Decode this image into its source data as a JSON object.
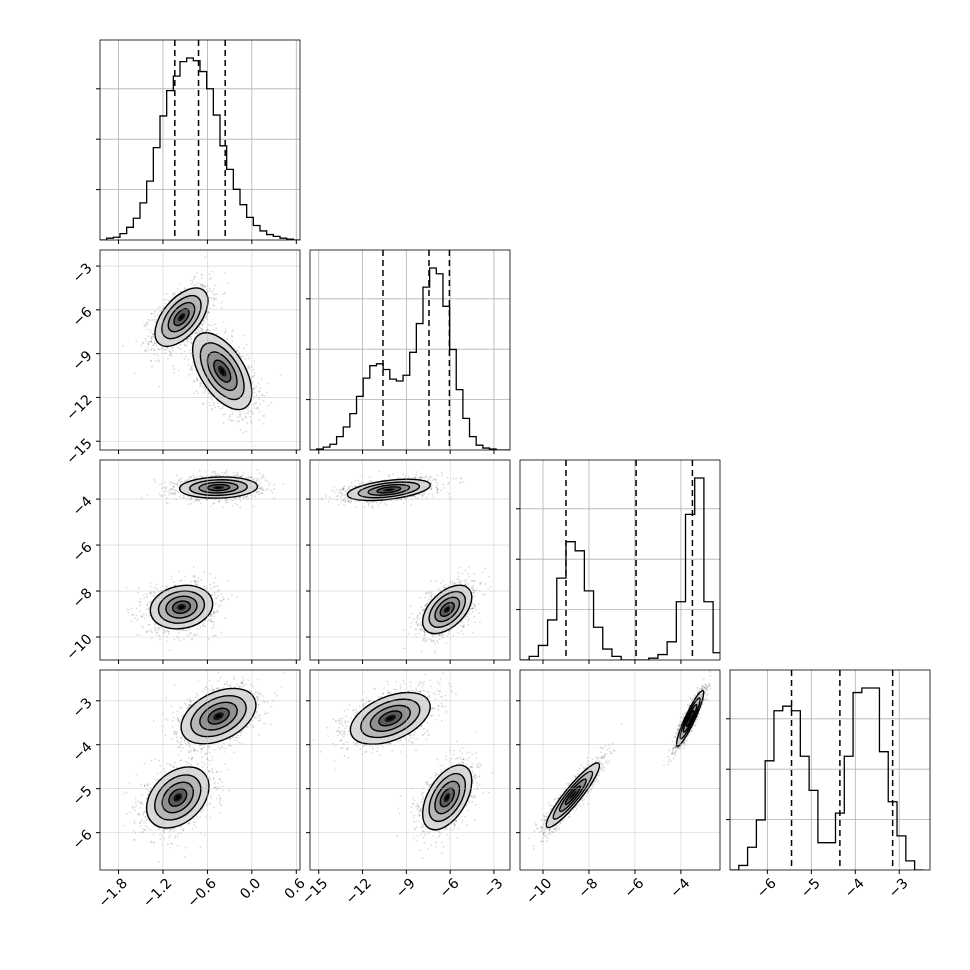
{
  "chart_data": {
    "type": "corner",
    "grid": true,
    "parameters": [
      {
        "range": [
          -2.05,
          0.65
        ],
        "ticks": [
          -1.8,
          -1.2,
          -0.6,
          0.0,
          0.6
        ],
        "tick_labels": [
          "−1.8",
          "−1.2",
          "−0.6",
          "0.0",
          "0.6"
        ],
        "quantiles": [
          -1.04,
          -0.72,
          -0.36
        ],
        "histogram": {
          "bin_edges": [
            -2.05,
            -1.96,
            -1.87,
            -1.78,
            -1.69,
            -1.6,
            -1.51,
            -1.42,
            -1.33,
            -1.24,
            -1.15,
            -1.06,
            -0.97,
            -0.88,
            -0.79,
            -0.7,
            -0.61,
            -0.52,
            -0.43,
            -0.34,
            -0.25,
            -0.16,
            -0.07,
            0.02,
            0.11,
            0.2,
            0.29,
            0.38,
            0.47,
            0.56,
            0.65
          ],
          "counts": [
            0,
            2,
            3,
            7,
            14,
            24,
            41,
            65,
            102,
            137,
            165,
            181,
            197,
            201,
            198,
            186,
            167,
            138,
            104,
            78,
            56,
            39,
            25,
            16,
            10,
            6,
            4,
            2,
            1,
            0
          ]
        }
      },
      {
        "range": [
          -15.6,
          -1.9
        ],
        "ticks": [
          -15,
          -12,
          -9,
          -6,
          -3
        ],
        "tick_labels": [
          "−15",
          "−12",
          "−9",
          "−6",
          "−3"
        ],
        "quantiles": [
          -10.6,
          -7.45,
          -6.05
        ],
        "histogram": {
          "bin_edges": [
            -15.6,
            -15.145,
            -14.689,
            -14.234,
            -13.779,
            -13.323,
            -12.868,
            -12.413,
            -11.957,
            -11.502,
            -11.047,
            -10.591,
            -10.136,
            -9.681,
            -9.225,
            -8.77,
            -8.315,
            -7.859,
            -7.404,
            -6.949,
            -6.493,
            -6.038,
            -5.583,
            -5.127,
            -4.672,
            -4.217,
            -3.761,
            -3.306,
            -2.851,
            -2.395,
            -1.94
          ],
          "counts": [
            0,
            1,
            3,
            6,
            14,
            24,
            38,
            56,
            75,
            88,
            90,
            84,
            74,
            72,
            78,
            102,
            132,
            170,
            190,
            184,
            150,
            105,
            63,
            33,
            14,
            5,
            2,
            1,
            0,
            0
          ]
        }
      },
      {
        "range": [
          -11.0,
          -2.3
        ],
        "ticks": [
          -10,
          -8,
          -6,
          -4
        ],
        "tick_labels": [
          "−10",
          "−8",
          "−6",
          "−4"
        ],
        "quantiles": [
          -9.0,
          -5.95,
          -3.5
        ],
        "histogram": {
          "bin_edges": [
            -11.0,
            -10.6,
            -10.2,
            -9.8,
            -9.4,
            -9.0,
            -8.6,
            -8.2,
            -7.8,
            -7.4,
            -7.0,
            -6.6,
            -6.2,
            -5.8,
            -5.4,
            -5.0,
            -4.6,
            -4.2,
            -3.8,
            -3.4,
            -3.0,
            -2.6,
            -2.2
          ],
          "counts": [
            0,
            2,
            8,
            22,
            45,
            65,
            60,
            38,
            18,
            6,
            2,
            0,
            0,
            0,
            1,
            3,
            10,
            32,
            80,
            100,
            32,
            4
          ]
        }
      },
      {
        "range": [
          -6.85,
          -2.3
        ],
        "ticks": [
          -6,
          -5,
          -4,
          -3
        ],
        "tick_labels": [
          "−6",
          "−5",
          "−4",
          "−3"
        ],
        "quantiles": [
          -5.45,
          -4.35,
          -3.15
        ],
        "histogram": {
          "bin_edges": [
            -6.85,
            -6.65,
            -6.45,
            -6.25,
            -6.05,
            -5.85,
            -5.65,
            -5.45,
            -5.25,
            -5.05,
            -4.85,
            -4.65,
            -4.45,
            -4.25,
            -4.05,
            -3.85,
            -3.65,
            -3.45,
            -3.25,
            -3.05,
            -2.85,
            -2.65,
            -2.45
          ],
          "counts": [
            0,
            2,
            10,
            22,
            48,
            70,
            72,
            70,
            50,
            35,
            12,
            12,
            25,
            50,
            78,
            80,
            80,
            52,
            30,
            15,
            4,
            0
          ]
        }
      }
    ],
    "pairs": [
      {
        "row": 1,
        "col": 0,
        "clusters": [
          {
            "mean": [
              -0.95,
              -6.5
            ],
            "sd": [
              0.17,
              0.95
            ],
            "corr": 0.55
          },
          {
            "mean": [
              -0.4,
              -10.2
            ],
            "sd": [
              0.19,
              1.25
            ],
            "corr": -0.55
          }
        ]
      },
      {
        "row": 2,
        "col": 0,
        "clusters": [
          {
            "mean": [
              -0.45,
              -3.5
            ],
            "sd": [
              0.25,
              0.22
            ],
            "corr": 0.1
          },
          {
            "mean": [
              -0.95,
              -8.7
            ],
            "sd": [
              0.2,
              0.45
            ],
            "corr": 0.15
          }
        ]
      },
      {
        "row": 2,
        "col": 1,
        "clusters": [
          {
            "mean": [
              -10.2,
              -3.6
            ],
            "sd": [
              1.35,
              0.22
            ],
            "corr": 0.45
          },
          {
            "mean": [
              -6.2,
              -8.8
            ],
            "sd": [
              0.8,
              0.5
            ],
            "corr": 0.5
          }
        ]
      },
      {
        "row": 3,
        "col": 0,
        "clusters": [
          {
            "mean": [
              -0.45,
              -3.35
            ],
            "sd": [
              0.24,
              0.3
            ],
            "corr": 0.4
          },
          {
            "mean": [
              -1.0,
              -5.2
            ],
            "sd": [
              0.2,
              0.33
            ],
            "corr": 0.35
          }
        ]
      },
      {
        "row": 3,
        "col": 1,
        "clusters": [
          {
            "mean": [
              -10.1,
              -3.4
            ],
            "sd": [
              1.3,
              0.28
            ],
            "corr": 0.45
          },
          {
            "mean": [
              -6.2,
              -5.2
            ],
            "sd": [
              0.8,
              0.35
            ],
            "corr": 0.5
          }
        ]
      },
      {
        "row": 3,
        "col": 2,
        "clusters": [
          {
            "mean": [
              -3.6,
              -3.4
            ],
            "sd": [
              0.28,
              0.3
            ],
            "corr": 0.92
          },
          {
            "mean": [
              -8.7,
              -5.15
            ],
            "sd": [
              0.55,
              0.35
            ],
            "corr": 0.92
          }
        ]
      }
    ]
  }
}
